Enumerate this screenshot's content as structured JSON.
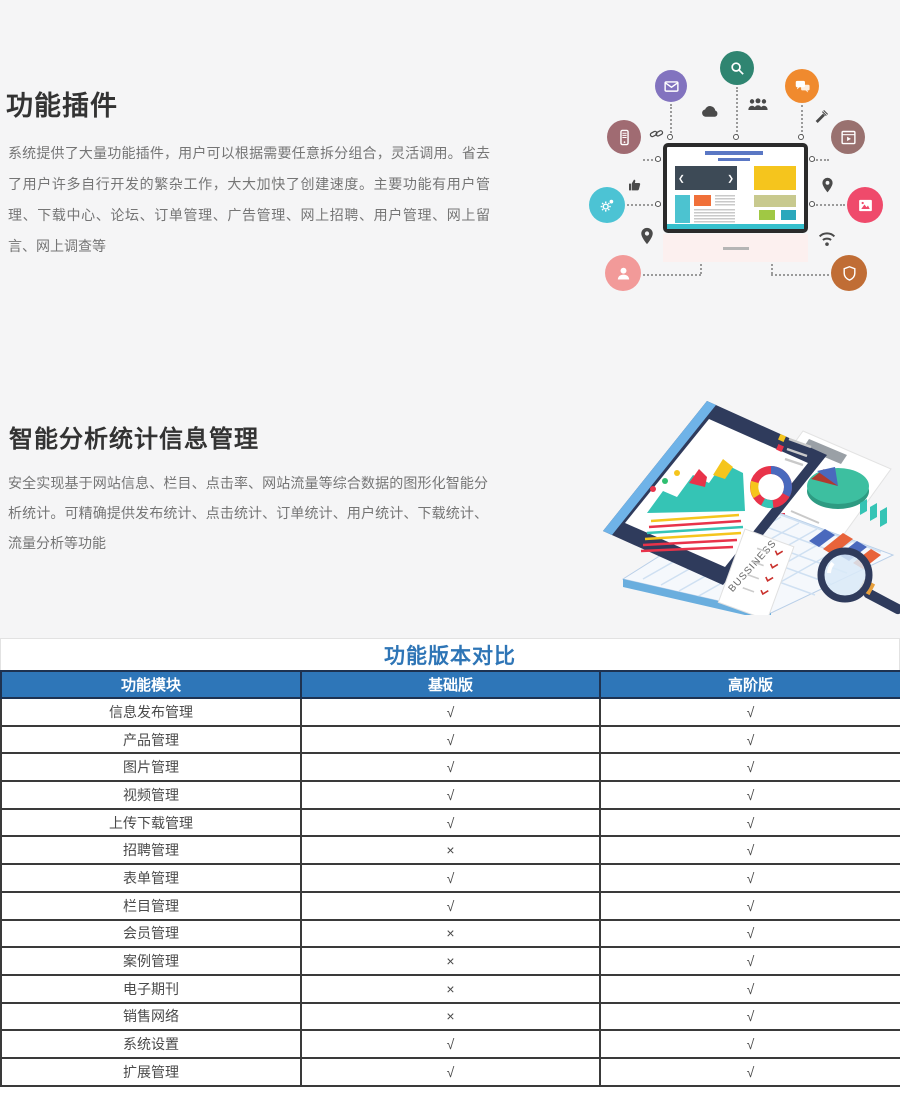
{
  "colors": {
    "hero_bg": "#f5f5f6",
    "accent_blue": "#2e75b6",
    "table_header_bg": "#2e76b8",
    "table_header_text": "#ffffff",
    "table_border": "#3a3a3a",
    "heading_text": "#333333",
    "body_text": "#757575",
    "check_text": "#4a4a4a"
  },
  "sections": [
    {
      "title": "功能插件",
      "body": "系统提供了大量功能插件，用户可以根据需要任意拆分组合，灵活调用。省去了用户许多自行开发的繁杂工作，大大加快了创建速度。主要功能有用户管理、下载中心、论坛、订单管理、广告管理、网上招聘、用户管理、网上留言、网上调查等"
    },
    {
      "title": "智能分析统计信息管理",
      "body": "安全实现基于网站信息、栏目、点击率、网站流量等综合数据的图形化智能分析统计。可精确提供发布统计、点击统计、订单统计、用户统计、下载统计、流量分析等功能"
    }
  ],
  "plugins_illustration": {
    "bubbles": [
      {
        "icon": "mail-icon",
        "color": "#8273bf"
      },
      {
        "icon": "search-icon",
        "color": "#2f8571"
      },
      {
        "icon": "chat-icon",
        "color": "#f08a2e"
      },
      {
        "icon": "mobile-icon",
        "color": "#a06b72"
      },
      {
        "icon": "video-icon",
        "color": "#99716f"
      },
      {
        "icon": "gears-icon",
        "color": "#4cc3d4"
      },
      {
        "icon": "image-icon",
        "color": "#ef4a6b"
      },
      {
        "icon": "user-icon",
        "color": "#f29a99"
      },
      {
        "icon": "shield-icon",
        "color": "#c06d35"
      }
    ],
    "small_icons": [
      "cloud-icon",
      "people-icon",
      "satellite-icon",
      "paperclip-icon",
      "thumbs-up-icon",
      "pin-icon",
      "location-pin-icon",
      "wifi-icon"
    ]
  },
  "analytics_illustration": {
    "paper_label": "BUSSINESS"
  },
  "comparison": {
    "title": "功能版本对比",
    "columns": [
      "功能模块",
      "基础版",
      "高阶版"
    ],
    "rows": [
      {
        "module": "信息发布管理",
        "basic": "√",
        "advanced": "√"
      },
      {
        "module": "产品管理",
        "basic": "√",
        "advanced": "√"
      },
      {
        "module": "图片管理",
        "basic": "√",
        "advanced": "√"
      },
      {
        "module": "视频管理",
        "basic": "√",
        "advanced": "√"
      },
      {
        "module": "上传下载管理",
        "basic": "√",
        "advanced": "√"
      },
      {
        "module": "招聘管理",
        "basic": "×",
        "advanced": "√"
      },
      {
        "module": "表单管理",
        "basic": "√",
        "advanced": "√"
      },
      {
        "module": "栏目管理",
        "basic": "√",
        "advanced": "√"
      },
      {
        "module": "会员管理",
        "basic": "×",
        "advanced": "√"
      },
      {
        "module": "案例管理",
        "basic": "×",
        "advanced": "√"
      },
      {
        "module": "电子期刊",
        "basic": "×",
        "advanced": "√"
      },
      {
        "module": "销售网络",
        "basic": "×",
        "advanced": "√"
      },
      {
        "module": "系统设置",
        "basic": "√",
        "advanced": "√"
      },
      {
        "module": "扩展管理",
        "basic": "√",
        "advanced": "√"
      }
    ]
  }
}
